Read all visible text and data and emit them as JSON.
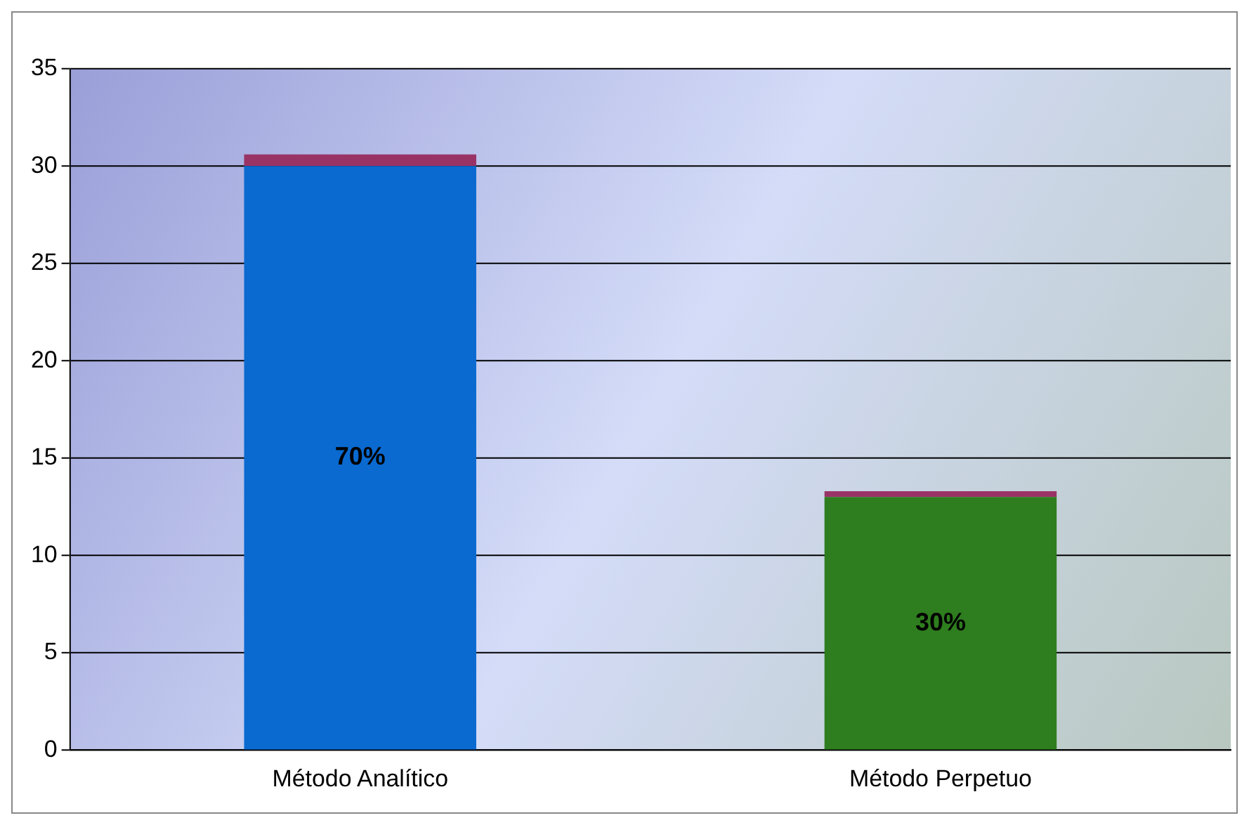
{
  "chart_data": {
    "type": "bar",
    "stacked": true,
    "categories": [
      "Método Analítico",
      "Método Perpetuo"
    ],
    "series": [
      {
        "colors": [
          "#0a6ad0",
          "#2e7d1e"
        ],
        "values": [
          30,
          13
        ]
      },
      {
        "color": "#993366",
        "values": [
          0.6,
          0.3
        ]
      }
    ],
    "annotations": [
      "70%",
      "30%"
    ],
    "ylim": [
      0,
      35
    ],
    "yticks": [
      0,
      5,
      10,
      15,
      20,
      25,
      30,
      35
    ],
    "grid": "y",
    "legend": false
  }
}
